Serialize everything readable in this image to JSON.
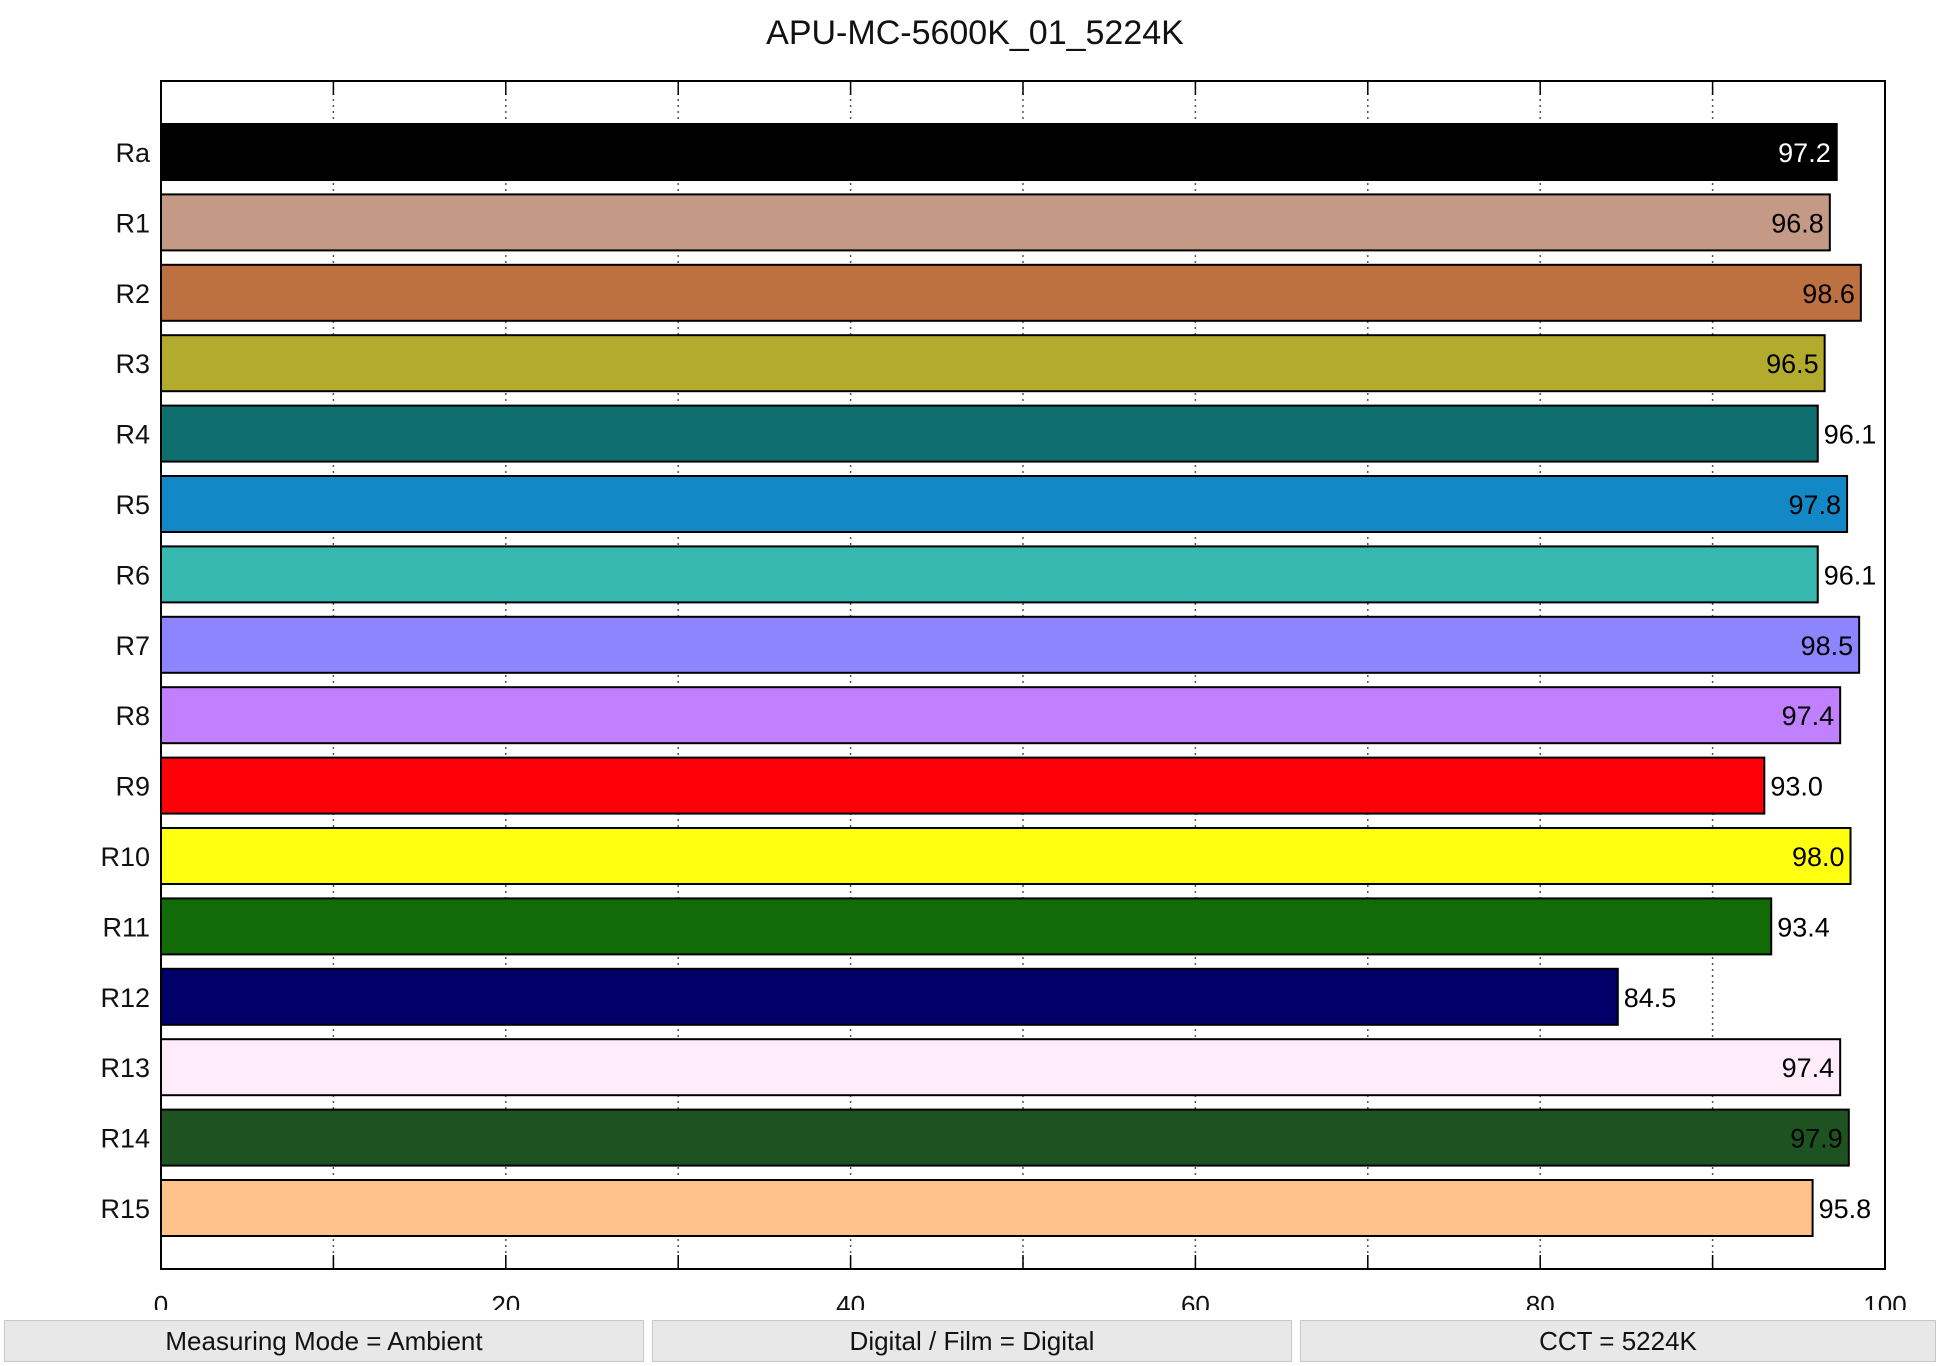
{
  "chart_data": {
    "type": "bar",
    "orientation": "horizontal",
    "title": "APU-MC-5600K_01_5224K",
    "xlabel": "",
    "ylabel": "",
    "xlim": [
      0,
      100
    ],
    "major_ticks": [
      0,
      20,
      40,
      60,
      80,
      100
    ],
    "minor_gridlines": [
      10,
      30,
      50,
      70,
      90
    ],
    "grid": "dotted vertical",
    "categories": [
      "Ra",
      "R1",
      "R2",
      "R3",
      "R4",
      "R5",
      "R6",
      "R7",
      "R8",
      "R9",
      "R10",
      "R11",
      "R12",
      "R13",
      "R14",
      "R15"
    ],
    "values": [
      97.2,
      96.8,
      98.6,
      96.5,
      96.1,
      97.8,
      96.1,
      98.5,
      97.4,
      93.0,
      98.0,
      93.4,
      84.5,
      97.4,
      97.9,
      95.8
    ],
    "value_labels": [
      "97.2",
      "96.8",
      "98.6",
      "96.5",
      "96.1",
      "97.8",
      "96.1",
      "98.5",
      "97.4",
      "93.0",
      "98.0",
      "93.4",
      "84.5",
      "97.4",
      "97.9",
      "95.8"
    ],
    "colors": [
      "#000000",
      "#c49a86",
      "#bd7040",
      "#b2ab2d",
      "#0f6f6e",
      "#1388c6",
      "#36b8ae",
      "#8d84ff",
      "#c080ff",
      "#ff0008",
      "#ffff10",
      "#116b06",
      "#000068",
      "#ffecfb",
      "#1e5321",
      "#ffc28a"
    ],
    "label_colors": [
      "#ffffff",
      "#000000",
      "#000000",
      "#000000",
      "#000000",
      "#000000",
      "#000000",
      "#000000",
      "#000000",
      "#000000",
      "#000000",
      "#000000",
      "#000000",
      "#000000",
      "#000000",
      "#000000"
    ]
  },
  "footer": {
    "measuring_mode": "Measuring Mode = Ambient",
    "digital_film": "Digital / Film = Digital",
    "cct": "CCT = 5224K"
  }
}
